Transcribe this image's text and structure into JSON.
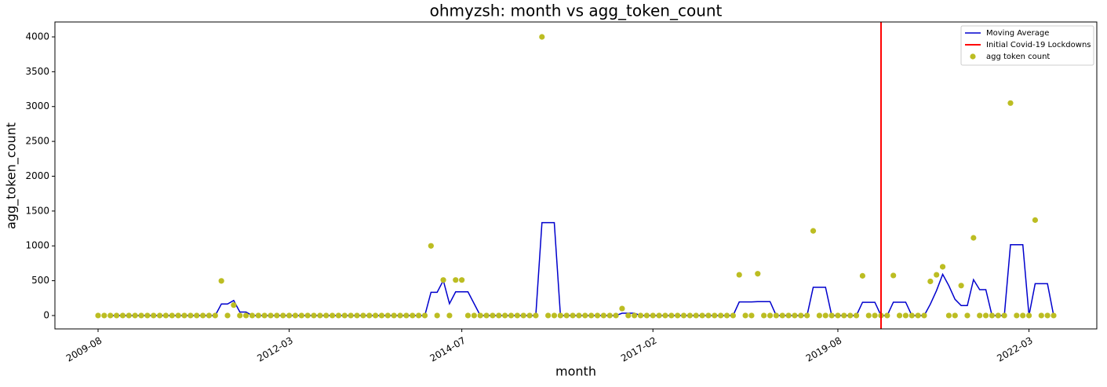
{
  "chart_data": {
    "type": "line",
    "title": "ohmyzsh: month vs agg_token_count",
    "x_label": "month",
    "y_label": "agg_token_count",
    "legend": "upper right",
    "x": [
      "2009-08",
      "2009-09",
      "2009-10",
      "2009-11",
      "2009-12",
      "2010-01",
      "2010-02",
      "2010-03",
      "2010-04",
      "2010-05",
      "2010-06",
      "2010-07",
      "2010-08",
      "2010-09",
      "2010-10",
      "2010-11",
      "2010-12",
      "2011-01",
      "2011-02",
      "2011-03",
      "2011-04",
      "2011-05",
      "2011-06",
      "2011-07",
      "2011-08",
      "2011-09",
      "2011-10",
      "2011-11",
      "2011-12",
      "2012-01",
      "2012-02",
      "2012-03",
      "2012-04",
      "2012-05",
      "2012-06",
      "2012-07",
      "2012-08",
      "2012-09",
      "2012-10",
      "2012-11",
      "2012-12",
      "2013-01",
      "2013-02",
      "2013-03",
      "2013-04",
      "2013-05",
      "2013-06",
      "2013-07",
      "2013-08",
      "2013-09",
      "2013-10",
      "2013-11",
      "2013-12",
      "2014-01",
      "2014-02",
      "2014-03",
      "2014-04",
      "2014-05",
      "2014-06",
      "2014-07",
      "2014-08",
      "2014-09",
      "2014-10",
      "2014-11",
      "2014-12",
      "2015-01",
      "2015-02",
      "2015-03",
      "2015-04",
      "2015-05",
      "2015-06",
      "2015-07",
      "2015-08",
      "2015-09",
      "2015-10",
      "2015-11",
      "2015-12",
      "2016-01",
      "2016-02",
      "2016-03",
      "2016-04",
      "2016-05",
      "2016-06",
      "2016-07",
      "2016-08",
      "2016-09",
      "2016-10",
      "2016-11",
      "2016-12",
      "2017-01",
      "2017-02",
      "2017-03",
      "2017-04",
      "2017-05",
      "2017-06",
      "2017-07",
      "2017-08",
      "2017-09",
      "2017-10",
      "2017-11",
      "2017-12",
      "2018-01",
      "2018-02",
      "2018-03",
      "2018-04",
      "2018-05",
      "2018-06",
      "2018-07",
      "2018-08",
      "2018-09",
      "2018-10",
      "2018-11",
      "2018-12",
      "2019-01",
      "2019-02",
      "2019-03",
      "2019-04",
      "2019-05",
      "2019-06",
      "2019-07",
      "2019-08",
      "2019-09",
      "2019-10",
      "2019-11",
      "2019-12",
      "2020-01",
      "2020-02",
      "2020-03",
      "2020-04",
      "2020-05",
      "2020-06",
      "2020-07",
      "2020-08",
      "2020-09",
      "2020-10",
      "2020-11",
      "2020-12",
      "2021-01",
      "2021-02",
      "2021-03",
      "2021-04",
      "2021-05",
      "2021-06",
      "2021-07",
      "2021-08",
      "2021-09",
      "2021-10",
      "2021-11",
      "2021-12",
      "2022-01",
      "2022-02",
      "2022-03",
      "2022-04",
      "2022-05",
      "2022-06",
      "2022-07"
    ],
    "series": [
      {
        "name": "Moving Average",
        "type": "line",
        "color": "mediumblue",
        "values": [
          null,
          null,
          0,
          0,
          0,
          0,
          0,
          0,
          0,
          0,
          0,
          0,
          0,
          0,
          0,
          0,
          0,
          0,
          0,
          0,
          165.7,
          165.7,
          215.7,
          50,
          50,
          0,
          0,
          0,
          0,
          0,
          0,
          0,
          0,
          0,
          0,
          0,
          0,
          0,
          0,
          0,
          0,
          0,
          0,
          0,
          0,
          0,
          0,
          0,
          0,
          0,
          0,
          0,
          0,
          0,
          333.3,
          333.3,
          503.3,
          170,
          340,
          340,
          340,
          170,
          0,
          0,
          0,
          0,
          0,
          0,
          0,
          0,
          0,
          0,
          1333.3,
          1333.3,
          1333.3,
          0,
          0,
          0,
          0,
          0,
          0,
          0,
          0,
          0,
          0,
          33.3,
          33.3,
          33.3,
          0,
          0,
          0,
          0,
          0,
          0,
          0,
          0,
          0,
          0,
          0,
          0,
          0,
          0,
          0,
          0,
          195,
          195,
          195,
          200,
          200,
          200,
          0,
          0,
          0,
          0,
          0,
          0,
          405,
          405,
          405,
          0,
          0,
          0,
          0,
          0,
          190,
          190,
          190,
          0,
          0,
          191.7,
          191.7,
          191.7,
          0,
          0,
          0,
          163.3,
          358.3,
          591.7,
          428.3,
          233.3,
          143.3,
          143.3,
          515,
          371.7,
          371.7,
          0,
          0,
          0,
          1016.7,
          1016.7,
          1016.7,
          0,
          456.7,
          456.7,
          456.7,
          0
        ]
      },
      {
        "name": "agg token count",
        "type": "scatter",
        "color": "#bcbd22",
        "values": [
          0,
          0,
          0,
          0,
          0,
          0,
          0,
          0,
          0,
          0,
          0,
          0,
          0,
          0,
          0,
          0,
          0,
          0,
          0,
          0,
          497,
          0,
          150,
          0,
          0,
          0,
          0,
          0,
          0,
          0,
          0,
          0,
          0,
          0,
          0,
          0,
          0,
          0,
          0,
          0,
          0,
          0,
          0,
          0,
          0,
          0,
          0,
          0,
          0,
          0,
          0,
          0,
          0,
          0,
          1000,
          0,
          510,
          0,
          510,
          510,
          0,
          0,
          0,
          0,
          0,
          0,
          0,
          0,
          0,
          0,
          0,
          0,
          4000,
          0,
          0,
          0,
          0,
          0,
          0,
          0,
          0,
          0,
          0,
          0,
          0,
          100,
          0,
          0,
          0,
          0,
          0,
          0,
          0,
          0,
          0,
          0,
          0,
          0,
          0,
          0,
          0,
          0,
          0,
          0,
          585,
          0,
          0,
          600,
          0,
          0,
          0,
          0,
          0,
          0,
          0,
          0,
          1215,
          0,
          0,
          0,
          0,
          0,
          0,
          0,
          570,
          0,
          0,
          0,
          0,
          575,
          0,
          0,
          0,
          0,
          0,
          490,
          585,
          700,
          0,
          0,
          430,
          0,
          1115,
          0,
          0,
          0,
          0,
          0,
          3050,
          0,
          0,
          0,
          1370,
          0,
          0,
          0
        ]
      }
    ],
    "vline": {
      "name": "Initial Covid-19 Lockdowns",
      "x": "2020-03",
      "color": "red"
    },
    "xlim": [
      "2009-01",
      "2023-02"
    ],
    "xticks": [
      "2009-08",
      "2012-03",
      "2014-07",
      "2017-02",
      "2019-08",
      "2022-03"
    ],
    "ylim": [
      -192,
      4214
    ],
    "yticks": [
      0,
      500,
      1000,
      1500,
      2000,
      2500,
      3000,
      3500,
      4000
    ]
  }
}
